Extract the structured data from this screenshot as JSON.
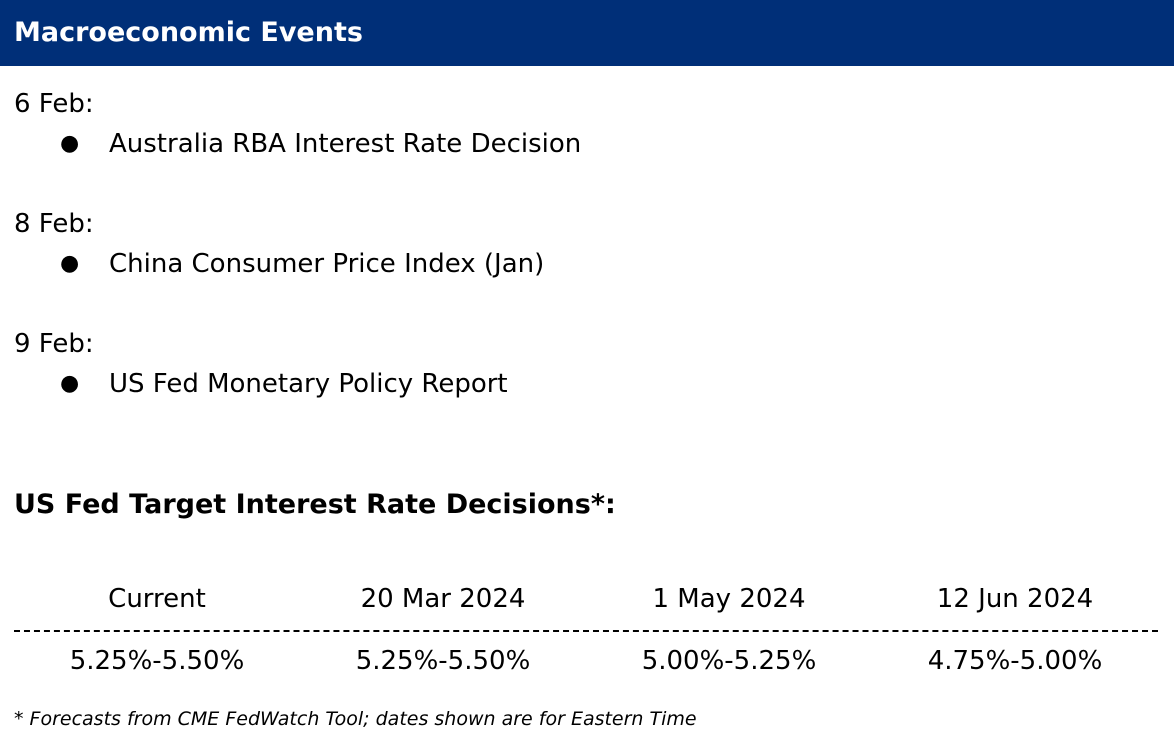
{
  "header": {
    "title": "Macroeconomic Events",
    "background_color": "#002f78"
  },
  "events": [
    {
      "date": "6 Feb:",
      "items": [
        "Australia RBA Interest Rate Decision"
      ]
    },
    {
      "date": "8 Feb:",
      "items": [
        "China Consumer Price Index (Jan)"
      ]
    },
    {
      "date": "9 Feb:",
      "items": [
        "US Fed Monetary Policy Report"
      ]
    }
  ],
  "bullet_glyph": "●",
  "rates": {
    "title": "US Fed Target Interest Rate Decisions*:",
    "columns": [
      "Current",
      "20 Mar 2024",
      "1 May 2024",
      "12 Jun 2024"
    ],
    "values": [
      "5.25%-5.50%",
      "5.25%-5.50%",
      "5.00%-5.25%",
      "4.75%-5.00%"
    ]
  },
  "footnote": "* Forecasts from CME FedWatch Tool; dates shown are for Eastern Time"
}
